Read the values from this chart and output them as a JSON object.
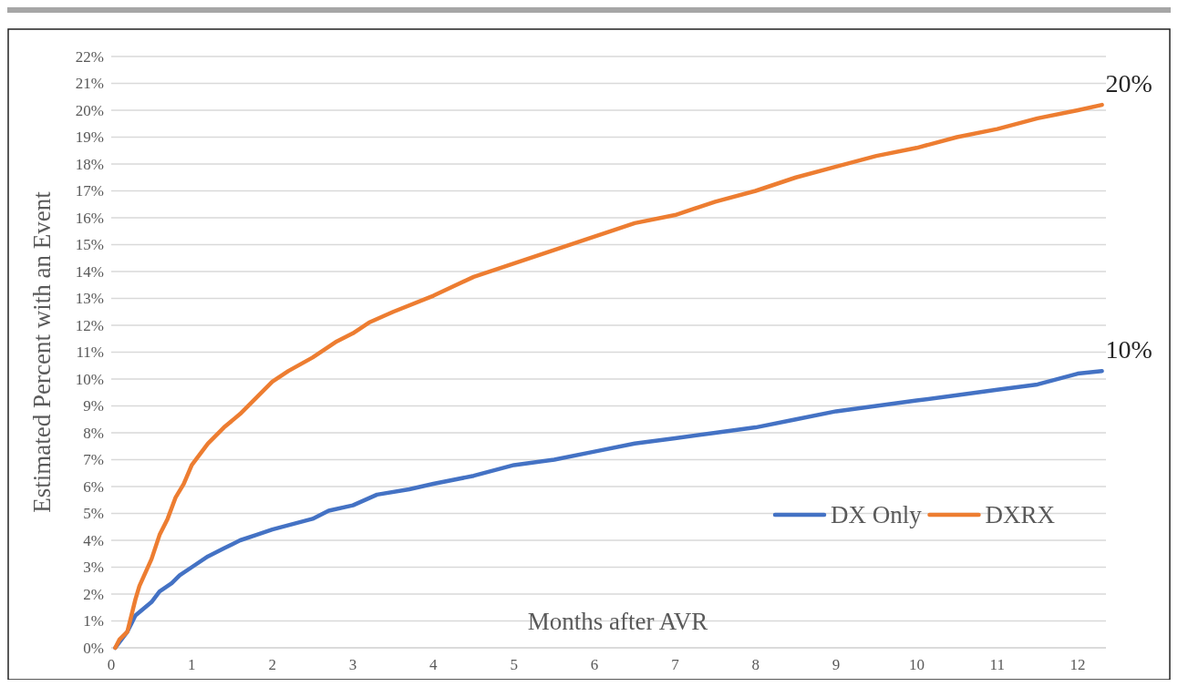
{
  "chart_data": {
    "type": "line",
    "xlabel": "Months after AVR",
    "ylabel": "Estimated Percent with an Event",
    "xlim": [
      0,
      12.35
    ],
    "xticks": [
      0,
      1,
      2,
      3,
      4,
      5,
      6,
      7,
      8,
      9,
      10,
      11,
      12
    ],
    "ylim": [
      0,
      22
    ],
    "yticks": [
      {
        "value": 0,
        "label": "0%"
      },
      {
        "value": 1,
        "label": "1%"
      },
      {
        "value": 2,
        "label": "2%"
      },
      {
        "value": 3,
        "label": "3%"
      },
      {
        "value": 4,
        "label": "4%"
      },
      {
        "value": 5,
        "label": "5%"
      },
      {
        "value": 6,
        "label": "6%"
      },
      {
        "value": 7,
        "label": "7%"
      },
      {
        "value": 8,
        "label": "8%"
      },
      {
        "value": 9,
        "label": "9%"
      },
      {
        "value": 10,
        "label": "10%"
      },
      {
        "value": 11,
        "label": "11%"
      },
      {
        "value": 12,
        "label": "12%"
      },
      {
        "value": 13,
        "label": "13%"
      },
      {
        "value": 14,
        "label": "14%"
      },
      {
        "value": 15,
        "label": "15%"
      },
      {
        "value": 16,
        "label": "16%"
      },
      {
        "value": 17,
        "label": "17%"
      },
      {
        "value": 18,
        "label": "18%"
      },
      {
        "value": 19,
        "label": "19%"
      },
      {
        "value": 20,
        "label": "20%"
      },
      {
        "value": 21,
        "label": "21%"
      },
      {
        "value": 22,
        "label": "22%"
      }
    ],
    "grid": "y",
    "legend": "right",
    "marker": "none",
    "line_style": "solid",
    "series": [
      {
        "name": "DX Only",
        "color": "#4472c4",
        "x": [
          0.05,
          0.1,
          0.2,
          0.25,
          0.3,
          0.5,
          0.6,
          0.75,
          0.85,
          1,
          1.2,
          1.4,
          1.6,
          1.8,
          2,
          2.5,
          2.7,
          3,
          3.3,
          3.7,
          4,
          4.5,
          5,
          5.5,
          6,
          6.5,
          7,
          7.5,
          8,
          8.5,
          9,
          9.5,
          10,
          10.5,
          11,
          11.5,
          12,
          12.3
        ],
        "values": [
          0,
          null,
          0.6,
          0.9,
          1.2,
          1.7,
          2.1,
          2.4,
          2.7,
          3,
          3.4,
          3.7,
          4,
          4.2,
          4.4,
          4.8,
          5.1,
          5.3,
          5.7,
          5.9,
          6.1,
          6.4,
          6.8,
          7,
          7.3,
          7.6,
          7.8,
          8,
          8.2,
          8.5,
          8.8,
          9,
          9.2,
          9.4,
          9.6,
          9.8,
          10.2,
          10.3
        ]
      },
      {
        "name": "DXRX",
        "color": "#ed7d31",
        "x": [
          0.05,
          0.1,
          0.2,
          0.25,
          0.3,
          0.35,
          0.5,
          0.6,
          0.7,
          0.8,
          0.9,
          1,
          1.2,
          1.4,
          1.6,
          1.8,
          2,
          2.2,
          2.5,
          2.8,
          3,
          3.2,
          3.5,
          4,
          4.5,
          5,
          5.5,
          6,
          6.5,
          7,
          7.5,
          8,
          8.5,
          9,
          9.5,
          10,
          10.5,
          11,
          11.5,
          12,
          12.3
        ],
        "values": [
          0,
          0.3,
          0.6,
          1.2,
          1.8,
          2.3,
          3.3,
          4.2,
          4.8,
          5.6,
          6.1,
          6.8,
          7.6,
          8.2,
          8.7,
          9.3,
          9.9,
          10.3,
          10.8,
          11.4,
          11.7,
          12.1,
          12.5,
          13.1,
          13.8,
          14.3,
          14.8,
          15.3,
          15.8,
          16.1,
          16.6,
          17,
          17.5,
          17.9,
          18.3,
          18.6,
          19,
          19.3,
          19.7,
          20,
          20.2
        ]
      }
    ],
    "annotations": [
      {
        "text": "20%",
        "x": 12.3,
        "y": 20.2
      },
      {
        "text": "10%",
        "x": 12.3,
        "y": 10.3
      }
    ]
  }
}
